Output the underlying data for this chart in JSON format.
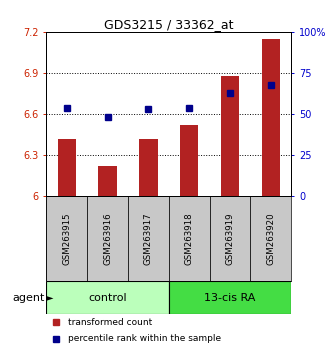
{
  "title": "GDS3215 / 33362_at",
  "samples": [
    "GSM263915",
    "GSM263916",
    "GSM263917",
    "GSM263918",
    "GSM263919",
    "GSM263920"
  ],
  "bar_values": [
    6.42,
    6.22,
    6.42,
    6.52,
    6.88,
    7.15
  ],
  "dot_values": [
    54,
    48,
    53,
    54,
    63,
    68
  ],
  "ylim_left": [
    6.0,
    7.2
  ],
  "ylim_right": [
    0,
    100
  ],
  "yticks_left": [
    6.0,
    6.3,
    6.6,
    6.9,
    7.2
  ],
  "ytick_labels_left": [
    "6",
    "6.3",
    "6.6",
    "6.9",
    "7.2"
  ],
  "yticks_right": [
    0,
    25,
    50,
    75,
    100
  ],
  "ytick_labels_right": [
    "0",
    "25",
    "50",
    "75",
    "100%"
  ],
  "bar_color": "#B22222",
  "dot_color": "#00008B",
  "control_color": "#BBFFBB",
  "ra_color": "#44DD44",
  "legend_items": [
    "transformed count",
    "percentile rank within the sample"
  ],
  "hgrid_values": [
    6.3,
    6.6,
    6.9
  ],
  "bar_bottom": 6.0,
  "label_bg": "#C8C8C8"
}
